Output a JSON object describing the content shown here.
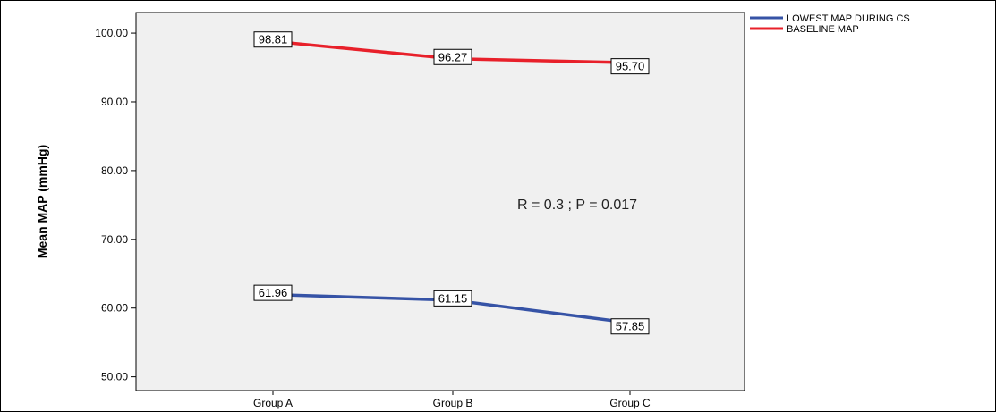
{
  "chart_data": {
    "type": "line",
    "categories": [
      "Group A",
      "Group B",
      "Group C"
    ],
    "series": [
      {
        "name": "LOWEST MAP DURING CS",
        "values": [
          61.96,
          61.15,
          57.85
        ],
        "color": "#3653a6"
      },
      {
        "name": "BASELINE MAP",
        "values": [
          98.81,
          96.27,
          95.7
        ],
        "color": "#e8202a"
      }
    ],
    "data_labels": {
      "series_0": [
        "61.96",
        "61.15",
        "57.85"
      ],
      "series_1": [
        "98.81",
        "96.27",
        "95.70"
      ]
    },
    "title": "",
    "xlabel": "",
    "ylabel": "Mean MAP (mmHg)",
    "ylim": [
      48,
      103
    ],
    "yticks": [
      50,
      60,
      70,
      80,
      90,
      100
    ],
    "ytick_labels": [
      "50.00",
      "60.00",
      "70.00",
      "80.00",
      "90.00",
      "100.00"
    ],
    "annotation": "R = 0.3 ; P = 0.017",
    "grid": false,
    "legend_position": "top-right",
    "plot_background": "#f0f0f0"
  }
}
